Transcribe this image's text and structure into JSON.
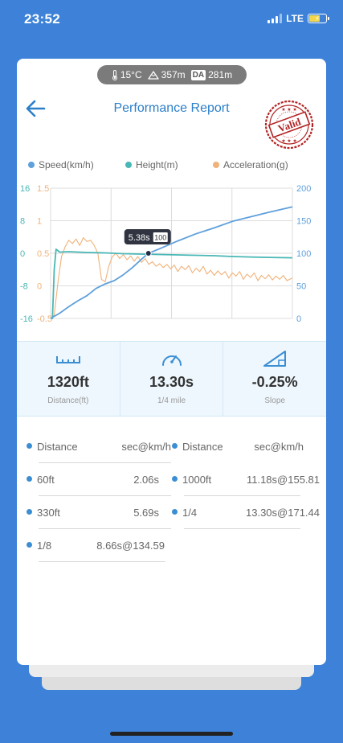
{
  "status_bar": {
    "time": "23:52",
    "network": "LTE"
  },
  "environment": {
    "temperature": "15°C",
    "altitude": "357m",
    "da_label": "DA",
    "density_altitude": "281m"
  },
  "header": {
    "title": "Performance Report",
    "stamp_text": "Valid",
    "stamp_color": "#b22222"
  },
  "legend": [
    {
      "label": "Speed(km/h)",
      "color": "#5fa0dc"
    },
    {
      "label": "Height(m)",
      "color": "#49b7b5"
    },
    {
      "label": "Acceleration(g)",
      "color": "#f0b27a"
    }
  ],
  "chart_data": {
    "type": "line",
    "x_range_s": [
      0,
      13.3
    ],
    "left_axis_height": {
      "ticks": [
        "16",
        "8",
        "0",
        "-8",
        "-16"
      ],
      "range": [
        -16,
        16
      ],
      "color": "#49b7b5"
    },
    "left_axis_acceleration": {
      "ticks": [
        "1.5",
        "1",
        "0.5",
        "0",
        "-0.5"
      ],
      "range": [
        -0.5,
        1.5
      ],
      "color": "#f0b27a"
    },
    "right_axis_speed": {
      "ticks": [
        "200",
        "150",
        "100",
        "50",
        "0"
      ],
      "range": [
        0,
        200
      ],
      "color": "#5fa0dc"
    },
    "grid": true,
    "tooltip": {
      "time": "5.38s",
      "value": "100",
      "x": 5.38,
      "speed": 100
    },
    "series": [
      {
        "name": "Speed(km/h)",
        "axis": "speed",
        "points": [
          [
            0,
            0
          ],
          [
            0.5,
            8
          ],
          [
            1,
            18
          ],
          [
            1.5,
            27
          ],
          [
            2,
            35
          ],
          [
            2.5,
            46
          ],
          [
            3,
            53
          ],
          [
            3.5,
            58
          ],
          [
            4,
            67
          ],
          [
            4.5,
            78
          ],
          [
            5,
            91
          ],
          [
            5.38,
            100
          ],
          [
            6,
            107
          ],
          [
            7,
            119
          ],
          [
            8,
            130
          ],
          [
            9,
            139
          ],
          [
            10,
            149
          ],
          [
            11,
            156
          ],
          [
            12,
            163
          ],
          [
            13.3,
            171.4
          ]
        ]
      },
      {
        "name": "Height(m)",
        "axis": "height",
        "points": [
          [
            0,
            -16
          ],
          [
            0.1,
            -16
          ],
          [
            0.2,
            -4
          ],
          [
            0.3,
            1
          ],
          [
            0.5,
            0.3
          ],
          [
            1,
            0.4
          ],
          [
            2,
            0.2
          ],
          [
            3,
            0.1
          ],
          [
            4,
            -0.1
          ],
          [
            5,
            -0.2
          ],
          [
            6,
            -0.3
          ],
          [
            7,
            -0.4
          ],
          [
            8,
            -0.5
          ],
          [
            9,
            -0.6
          ],
          [
            10,
            -0.8
          ],
          [
            11,
            -0.9
          ],
          [
            12,
            -1.0
          ],
          [
            13.3,
            -1.1
          ]
        ]
      },
      {
        "name": "Acceleration(g)",
        "axis": "acceleration",
        "points": [
          [
            0,
            -0.5
          ],
          [
            0.2,
            -0.45
          ],
          [
            0.4,
            0.05
          ],
          [
            0.6,
            0.45
          ],
          [
            0.8,
            0.6
          ],
          [
            1.0,
            0.7
          ],
          [
            1.2,
            0.65
          ],
          [
            1.4,
            0.72
          ],
          [
            1.6,
            0.62
          ],
          [
            1.8,
            0.74
          ],
          [
            2.0,
            0.68
          ],
          [
            2.2,
            0.7
          ],
          [
            2.4,
            0.62
          ],
          [
            2.6,
            0.5
          ],
          [
            2.8,
            0.1
          ],
          [
            3.0,
            0.06
          ],
          [
            3.2,
            0.3
          ],
          [
            3.4,
            0.45
          ],
          [
            3.6,
            0.5
          ],
          [
            3.8,
            0.42
          ],
          [
            4.0,
            0.48
          ],
          [
            4.2,
            0.4
          ],
          [
            4.4,
            0.46
          ],
          [
            4.6,
            0.38
          ],
          [
            4.8,
            0.45
          ],
          [
            5.0,
            0.36
          ],
          [
            5.2,
            0.42
          ],
          [
            5.4,
            0.33
          ],
          [
            5.6,
            0.37
          ],
          [
            5.8,
            0.3
          ],
          [
            6.0,
            0.34
          ],
          [
            6.2,
            0.28
          ],
          [
            6.4,
            0.33
          ],
          [
            6.6,
            0.26
          ],
          [
            6.8,
            0.32
          ],
          [
            7.0,
            0.22
          ],
          [
            7.2,
            0.3
          ],
          [
            7.4,
            0.25
          ],
          [
            7.6,
            0.31
          ],
          [
            7.8,
            0.2
          ],
          [
            8.0,
            0.27
          ],
          [
            8.2,
            0.22
          ],
          [
            8.4,
            0.3
          ],
          [
            8.6,
            0.18
          ],
          [
            8.8,
            0.24
          ],
          [
            9.0,
            0.16
          ],
          [
            9.2,
            0.23
          ],
          [
            9.4,
            0.17
          ],
          [
            9.6,
            0.22
          ],
          [
            9.8,
            0.12
          ],
          [
            10.0,
            0.2
          ],
          [
            10.2,
            0.15
          ],
          [
            10.4,
            0.22
          ],
          [
            10.6,
            0.1
          ],
          [
            10.8,
            0.18
          ],
          [
            11.0,
            0.13
          ],
          [
            11.2,
            0.2
          ],
          [
            11.4,
            0.08
          ],
          [
            11.6,
            0.16
          ],
          [
            11.8,
            0.11
          ],
          [
            12.0,
            0.17
          ],
          [
            12.2,
            0.09
          ],
          [
            12.4,
            0.15
          ],
          [
            12.6,
            0.1
          ],
          [
            12.8,
            0.16
          ],
          [
            13.0,
            0.08
          ],
          [
            13.3,
            0.12
          ]
        ]
      }
    ]
  },
  "stats": [
    {
      "icon": "ruler-icon",
      "value": "1320ft",
      "label": "Distance(ft)"
    },
    {
      "icon": "speedometer-icon",
      "value": "13.30s",
      "label": "1/4 mile"
    },
    {
      "icon": "slope-icon",
      "value": "-0.25%",
      "label": "Slope"
    }
  ],
  "splits": {
    "header_distance": "Distance",
    "header_value": "sec@km/h",
    "left": [
      {
        "distance": "60ft",
        "value": "2.06s"
      },
      {
        "distance": "330ft",
        "value": "5.69s"
      },
      {
        "distance": "1/8",
        "value": "8.66s@134.59"
      }
    ],
    "right": [
      {
        "distance": "1000ft",
        "value": "11.18s@155.81"
      },
      {
        "distance": "1/4",
        "value": "13.30s@171.44"
      }
    ]
  }
}
